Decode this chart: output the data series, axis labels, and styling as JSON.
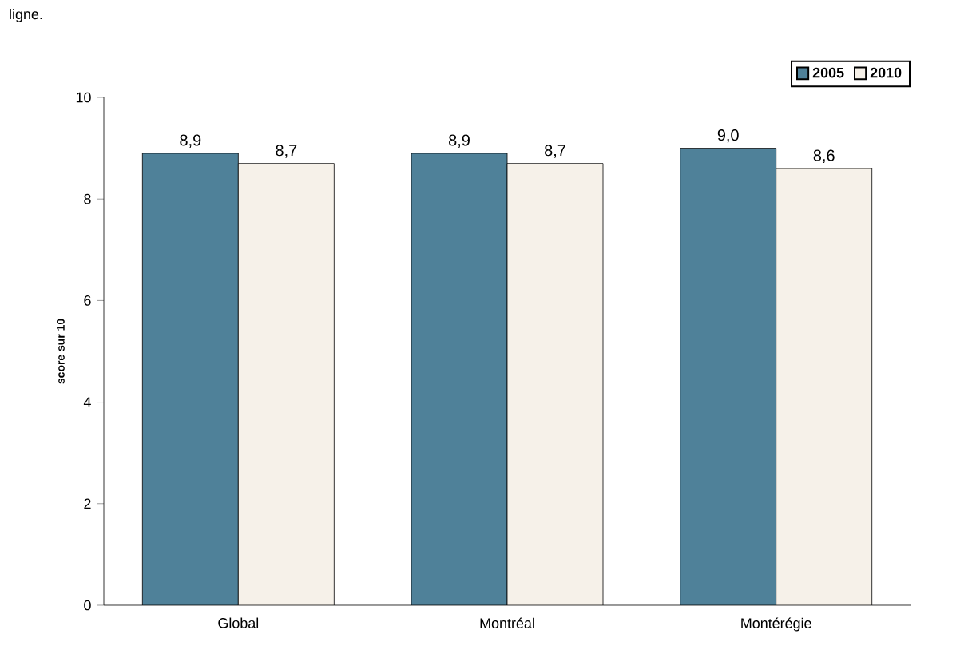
{
  "chart_data": {
    "type": "bar",
    "ylabel": "score sur 10",
    "annotations": [
      "ligne."
    ],
    "categories": [
      "Global",
      "Montréal",
      "Montérégie"
    ],
    "series": [
      {
        "name": "2005",
        "color": "#4f8199",
        "values": [
          8.9,
          8.9,
          9.0
        ],
        "value_labels": [
          "8,9",
          "8,9",
          "9,0"
        ]
      },
      {
        "name": "2010",
        "color": "#f6f1e9",
        "values": [
          8.7,
          8.7,
          8.6
        ],
        "value_labels": [
          "8,7",
          "8,7",
          "8,6"
        ]
      }
    ],
    "ylim": [
      0,
      10
    ],
    "yticks": [
      0,
      2,
      4,
      6,
      8,
      10
    ],
    "legend": "top right",
    "grid": false
  }
}
